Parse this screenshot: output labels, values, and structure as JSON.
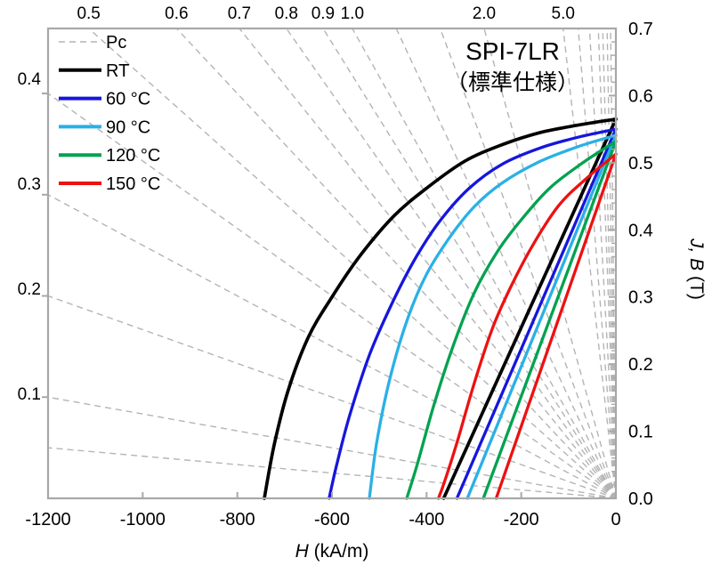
{
  "chart_data": {
    "type": "line",
    "title": "SPI-7LR",
    "subtitle": "（標準仕様）",
    "xlabel_italic": "H",
    "xlabel_rest": " (kA/m)",
    "ylabel_italic": "J, B",
    "ylabel_rest": " (T)",
    "xlim": [
      -1200,
      0
    ],
    "ylim": [
      0.0,
      0.7
    ],
    "x_unit": "kA/m",
    "y_unit": "T",
    "x_ticks": [
      "-1200",
      "-1000",
      "-800",
      "-600",
      "-400",
      "-200",
      "0"
    ],
    "x_tick_values": [
      -1200,
      -1000,
      -800,
      -600,
      -400,
      -200,
      0
    ],
    "y_ticks": [
      "0.0",
      "0.1",
      "0.2",
      "0.3",
      "0.4",
      "0.5",
      "0.6",
      "0.7"
    ],
    "y_tick_values": [
      0.0,
      0.1,
      0.2,
      0.3,
      0.4,
      0.5,
      0.6,
      0.7
    ],
    "y_minor_step": 0.02,
    "grid": false,
    "pc": {
      "legend_label": "Pc",
      "lines": [
        0.05,
        0.1,
        0.2,
        0.3,
        0.4,
        0.5,
        0.6,
        0.7,
        0.8,
        0.9,
        1.0,
        1.2,
        1.5,
        2.0,
        5.0,
        7.0,
        10,
        15,
        20,
        30,
        50
      ],
      "top_labels": [
        "0.5",
        "0.6",
        "0.7",
        "0.8",
        "0.9",
        "1.0",
        "2.0",
        "5.0"
      ],
      "top_label_values": [
        0.5,
        0.6,
        0.7,
        0.8,
        0.9,
        1.0,
        2.0,
        5.0
      ],
      "left_labels": [
        "0.4",
        "0.3",
        "0.2",
        "0.1"
      ],
      "left_label_values": [
        0.4,
        0.3,
        0.2,
        0.1
      ]
    },
    "series": [
      {
        "name": "RT",
        "color": "#000000",
        "width": 3.7,
        "J": [
          [
            0,
            0.565
          ],
          [
            -80,
            0.556
          ],
          [
            -160,
            0.545
          ],
          [
            -240,
            0.527
          ],
          [
            -320,
            0.502
          ],
          [
            -400,
            0.462
          ],
          [
            -470,
            0.42
          ],
          [
            -540,
            0.362
          ],
          [
            -600,
            0.3
          ],
          [
            -650,
            0.24
          ],
          [
            -693,
            0.16
          ],
          [
            -722,
            0.08
          ],
          [
            -743,
            0
          ]
        ],
        "B": [
          [
            0,
            0.565
          ],
          [
            -364,
            0
          ]
        ]
      },
      {
        "name": "60 °C",
        "color": "#1616dd",
        "width": 3.3,
        "J": [
          [
            0,
            0.55
          ],
          [
            -80,
            0.538
          ],
          [
            -160,
            0.522
          ],
          [
            -240,
            0.498
          ],
          [
            -310,
            0.462
          ],
          [
            -370,
            0.415
          ],
          [
            -420,
            0.362
          ],
          [
            -470,
            0.295
          ],
          [
            -520,
            0.215
          ],
          [
            -562,
            0.125
          ],
          [
            -590,
            0.05
          ],
          [
            -606,
            0
          ]
        ],
        "B": [
          [
            0,
            0.55
          ],
          [
            -336,
            0
          ]
        ]
      },
      {
        "name": "90 °C",
        "color": "#2ab0e6",
        "width": 3.3,
        "J": [
          [
            0,
            0.541
          ],
          [
            -80,
            0.524
          ],
          [
            -160,
            0.502
          ],
          [
            -240,
            0.47
          ],
          [
            -300,
            0.434
          ],
          [
            -350,
            0.39
          ],
          [
            -400,
            0.334
          ],
          [
            -440,
            0.268
          ],
          [
            -477,
            0.18
          ],
          [
            -505,
            0.085
          ],
          [
            -521,
            0
          ]
        ],
        "B": [
          [
            0,
            0.541
          ],
          [
            -314,
            0
          ]
        ]
      },
      {
        "name": "120 °C",
        "color": "#00a24f",
        "width": 3.3,
        "J": [
          [
            0,
            0.532
          ],
          [
            -70,
            0.5
          ],
          [
            -140,
            0.462
          ],
          [
            -200,
            0.415
          ],
          [
            -250,
            0.368
          ],
          [
            -300,
            0.305
          ],
          [
            -345,
            0.225
          ],
          [
            -385,
            0.138
          ],
          [
            -420,
            0.05
          ],
          [
            -442,
            0
          ]
        ],
        "B": [
          [
            0,
            0.532
          ],
          [
            -280,
            0
          ]
        ]
      },
      {
        "name": "150 °C",
        "color": "#ed1111",
        "width": 3.3,
        "J": [
          [
            0,
            0.513
          ],
          [
            -60,
            0.478
          ],
          [
            -120,
            0.437
          ],
          [
            -175,
            0.378
          ],
          [
            -220,
            0.318
          ],
          [
            -260,
            0.255
          ],
          [
            -300,
            0.17
          ],
          [
            -335,
            0.085
          ],
          [
            -362,
            0.025
          ],
          [
            -375,
            0
          ]
        ],
        "B": [
          [
            0,
            0.513
          ],
          [
            -253,
            0
          ]
        ]
      }
    ]
  },
  "legend": {
    "items": [
      {
        "label": "Pc",
        "color": "#b4b4b4",
        "dashed": true
      },
      {
        "label": "RT",
        "color": "#000000",
        "dashed": false
      },
      {
        "label": "60 °C",
        "color": "#1616dd",
        "dashed": false
      },
      {
        "label": "90 °C",
        "color": "#2ab0e6",
        "dashed": false
      },
      {
        "label": "120 °C",
        "color": "#00a24f",
        "dashed": false
      },
      {
        "label": "150 °C",
        "color": "#ed1111",
        "dashed": false
      }
    ]
  },
  "colors": {
    "axis": "#a8a8a8",
    "pc_line": "#b4b4b4",
    "text": "#000000"
  }
}
